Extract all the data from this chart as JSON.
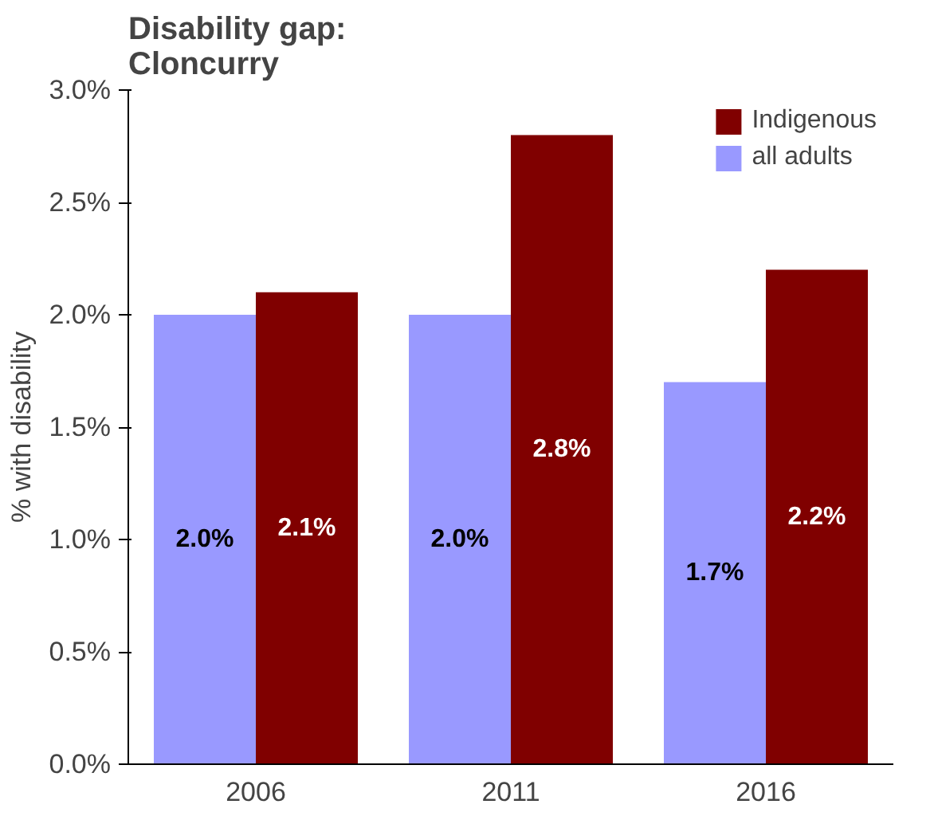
{
  "chart_data": {
    "type": "bar",
    "title": "Disability gap:\nCloncurry",
    "ylabel": "% with disability",
    "categories": [
      "2006",
      "2011",
      "2016"
    ],
    "series": [
      {
        "name": "all adults",
        "color": "#9999ff",
        "values": [
          2.0,
          2.0,
          1.7
        ],
        "value_labels": [
          "2.0%",
          "2.0%",
          "1.7%"
        ]
      },
      {
        "name": "Indigenous",
        "color": "#800000",
        "values": [
          2.1,
          2.8,
          2.2
        ],
        "value_labels": [
          "2.1%",
          "2.8%",
          "2.2%"
        ]
      }
    ],
    "ylim": [
      0,
      3
    ],
    "yticks": [
      {
        "value": 0,
        "label": "0.0%"
      },
      {
        "value": 0.5,
        "label": "0.5%"
      },
      {
        "value": 1,
        "label": "1.0%"
      },
      {
        "value": 1.5,
        "label": "1.5%"
      },
      {
        "value": 2,
        "label": "2.0%"
      },
      {
        "value": 2.5,
        "label": "2.5%"
      },
      {
        "value": 3,
        "label": "3.0%"
      }
    ],
    "grid": false,
    "legend": "top right"
  }
}
